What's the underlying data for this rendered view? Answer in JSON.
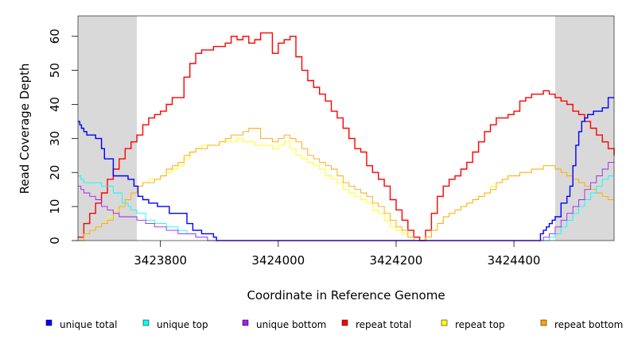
{
  "chart_data": {
    "type": "line",
    "title": "",
    "xlabel": "Coordinate in Reference Genome",
    "ylabel": "Read Coverage Depth",
    "xlim": [
      3423660,
      3424570
    ],
    "ylim": [
      0,
      66
    ],
    "xticks": [
      3423800,
      3424000,
      3424200,
      3424400
    ],
    "xtick_labels": [
      "3423800",
      "3424000",
      "3424200",
      "3424400"
    ],
    "yticks": [
      0,
      10,
      20,
      30,
      40,
      50,
      60
    ],
    "ytick_labels": [
      "0",
      "10",
      "20",
      "30",
      "40",
      "50",
      "60"
    ],
    "shaded_regions": [
      {
        "x0": 3423660,
        "x1": 3423760
      },
      {
        "x0": 3424470,
        "x1": 3424570
      }
    ],
    "series": [
      {
        "name": "repeat total",
        "color": "#ff0000",
        "x": [
          3423660,
          3423670,
          3423680,
          3423690,
          3423700,
          3423710,
          3423720,
          3423730,
          3423740,
          3423750,
          3423760,
          3423770,
          3423780,
          3423790,
          3423800,
          3423810,
          3423820,
          3423830,
          3423840,
          3423850,
          3423860,
          3423870,
          3423880,
          3423890,
          3423900,
          3423910,
          3423920,
          3423930,
          3423940,
          3423950,
          3423960,
          3423970,
          3423980,
          3423990,
          3424000,
          3424010,
          3424020,
          3424030,
          3424040,
          3424050,
          3424060,
          3424070,
          3424080,
          3424090,
          3424100,
          3424110,
          3424120,
          3424130,
          3424140,
          3424150,
          3424160,
          3424170,
          3424180,
          3424190,
          3424200,
          3424210,
          3424220,
          3424230,
          3424240,
          3424250,
          3424260,
          3424270,
          3424280,
          3424290,
          3424300,
          3424310,
          3424320,
          3424330,
          3424340,
          3424350,
          3424360,
          3424370,
          3424380,
          3424390,
          3424400,
          3424410,
          3424420,
          3424430,
          3424440,
          3424450,
          3424460,
          3424470,
          3424480,
          3424490,
          3424500,
          3424510,
          3424520,
          3424530,
          3424540,
          3424550,
          3424560,
          3424570
        ],
        "values": [
          1,
          5,
          8,
          11,
          14,
          18,
          21,
          24,
          27,
          29,
          31,
          34,
          36,
          37,
          38,
          40,
          42,
          42,
          48,
          52,
          55,
          56,
          56,
          57,
          57,
          58,
          60,
          59,
          60,
          58,
          59,
          61,
          61,
          55,
          58,
          59,
          60,
          54,
          50,
          47,
          45,
          43,
          41,
          38,
          36,
          33,
          30,
          27,
          26,
          22,
          20,
          18,
          16,
          12,
          9,
          6,
          3,
          1,
          0,
          3,
          8,
          13,
          16,
          18,
          19,
          21,
          23,
          26,
          29,
          32,
          34,
          36,
          36,
          37,
          38,
          41,
          42,
          43,
          43,
          44,
          43,
          42,
          41,
          40,
          38,
          37,
          35,
          33,
          31,
          29,
          27,
          25
        ]
      },
      {
        "name": "repeat top",
        "color": "#ffff00",
        "x": [
          3423660,
          3423670,
          3423680,
          3423690,
          3423700,
          3423710,
          3423720,
          3423730,
          3423740,
          3423750,
          3423760,
          3423770,
          3423780,
          3423790,
          3423800,
          3423810,
          3423820,
          3423830,
          3423840,
          3423850,
          3423860,
          3423870,
          3423880,
          3423890,
          3423900,
          3423910,
          3423920,
          3423930,
          3423940,
          3423950,
          3423960,
          3423970,
          3423980,
          3423990,
          3424000,
          3424010,
          3424020,
          3424030,
          3424040,
          3424050,
          3424060,
          3424070,
          3424080,
          3424090,
          3424100,
          3424110,
          3424120,
          3424130,
          3424140,
          3424150,
          3424160,
          3424170,
          3424180,
          3424190,
          3424200,
          3424210,
          3424220,
          3424230,
          3424240,
          3424250,
          3424260,
          3424270,
          3424280,
          3424290,
          3424300,
          3424310,
          3424320,
          3424330,
          3424340,
          3424350,
          3424360,
          3424370,
          3424380,
          3424390,
          3424400,
          3424410,
          3424420,
          3424430,
          3424440,
          3424450,
          3424460,
          3424470,
          3424480,
          3424490,
          3424500,
          3424510,
          3424520,
          3424530,
          3424540,
          3424550,
          3424560,
          3424570
        ],
        "values": [
          0,
          2,
          3,
          4,
          5,
          7,
          9,
          10,
          12,
          14,
          16,
          17,
          18,
          18,
          19,
          20,
          21,
          22,
          24,
          26,
          27,
          28,
          28,
          28,
          29,
          29,
          29,
          30,
          29,
          29,
          28,
          28,
          28,
          27,
          28,
          29,
          27,
          25,
          24,
          23,
          22,
          21,
          19,
          18,
          17,
          15,
          14,
          13,
          12,
          11,
          9,
          8,
          6,
          4,
          3,
          2,
          1,
          0,
          0,
          1,
          3,
          5,
          7,
          8,
          9,
          10,
          11,
          12,
          13,
          14,
          16,
          17,
          18,
          19,
          19,
          20,
          20,
          21,
          21,
          22,
          22,
          21,
          20,
          19,
          18,
          17,
          16,
          15,
          14,
          13,
          12,
          12
        ]
      },
      {
        "name": "repeat bottom",
        "color": "#ffa500",
        "x": [
          3423660,
          3423670,
          3423680,
          3423690,
          3423700,
          3423710,
          3423720,
          3423730,
          3423740,
          3423750,
          3423760,
          3423770,
          3423780,
          3423790,
          3423800,
          3423810,
          3423820,
          3423830,
          3423840,
          3423850,
          3423860,
          3423870,
          3423880,
          3423890,
          3423900,
          3423910,
          3423920,
          3423930,
          3423940,
          3423950,
          3423960,
          3423970,
          3423980,
          3423990,
          3424000,
          3424010,
          3424020,
          3424030,
          3424040,
          3424050,
          3424060,
          3424070,
          3424080,
          3424090,
          3424100,
          3424110,
          3424120,
          3424130,
          3424140,
          3424150,
          3424160,
          3424170,
          3424180,
          3424190,
          3424200,
          3424210,
          3424220,
          3424230,
          3424240,
          3424250,
          3424260,
          3424270,
          3424280,
          3424290,
          3424300,
          3424310,
          3424320,
          3424330,
          3424340,
          3424350,
          3424360,
          3424370,
          3424380,
          3424390,
          3424400,
          3424410,
          3424420,
          3424430,
          3424440,
          3424450,
          3424460,
          3424470,
          3424480,
          3424490,
          3424500,
          3424510,
          3424520,
          3424530,
          3424540,
          3424550,
          3424560,
          3424570
        ],
        "values": [
          0,
          2,
          3,
          4,
          5,
          6,
          8,
          10,
          12,
          14,
          16,
          17,
          17,
          18,
          19,
          21,
          22,
          23,
          25,
          26,
          27,
          27,
          28,
          28,
          29,
          30,
          31,
          31,
          32,
          33,
          33,
          30,
          30,
          29,
          30,
          31,
          30,
          29,
          27,
          25,
          24,
          23,
          22,
          21,
          19,
          17,
          16,
          15,
          14,
          13,
          11,
          10,
          8,
          6,
          4,
          3,
          1,
          0,
          0,
          1,
          3,
          5,
          7,
          8,
          9,
          10,
          11,
          12,
          13,
          14,
          15,
          17,
          18,
          19,
          19,
          20,
          20,
          21,
          21,
          22,
          22,
          21,
          20,
          19,
          18,
          17,
          16,
          15,
          14,
          13,
          12,
          12
        ]
      },
      {
        "name": "unique total",
        "color": "#0000ff",
        "x": [
          3423660,
          3423663,
          3423666,
          3423670,
          3423675,
          3423690,
          3423700,
          3423705,
          3423720,
          3423745,
          3423755,
          3423762,
          3423770,
          3423780,
          3423795,
          3423815,
          3423840,
          3423845,
          3423855,
          3423870,
          3423875,
          3423890,
          3423895,
          3424440,
          3424445,
          3424450,
          3424455,
          3424460,
          3424465,
          3424470,
          3424480,
          3424490,
          3424495,
          3424500,
          3424505,
          3424510,
          3424515,
          3424520,
          3424525,
          3424535,
          3424550,
          3424560,
          3424565,
          3424570
        ],
        "values": [
          35,
          34,
          33,
          32,
          31,
          30,
          27,
          24,
          19,
          18,
          16,
          13,
          12,
          11,
          10,
          8,
          8,
          5,
          3,
          2,
          2,
          1,
          0,
          0,
          2,
          3,
          4,
          5,
          6,
          7,
          11,
          13,
          16,
          22,
          28,
          32,
          35,
          36,
          37,
          38,
          39,
          42,
          42,
          42
        ]
      },
      {
        "name": "unique top",
        "color": "#00ffff",
        "x": [
          3423660,
          3423665,
          3423670,
          3423680,
          3423700,
          3423720,
          3423735,
          3423745,
          3423750,
          3423760,
          3423775,
          3423790,
          3423810,
          3423830,
          3423845,
          3423860,
          3423880,
          3423890,
          3423895,
          3424440,
          3424450,
          3424460,
          3424470,
          3424480,
          3424490,
          3424500,
          3424510,
          3424520,
          3424530,
          3424540,
          3424550,
          3424560,
          3424570
        ],
        "values": [
          19,
          18,
          17,
          17,
          16,
          14,
          11,
          10,
          9,
          8,
          6,
          5,
          4,
          3,
          2,
          1,
          0,
          0,
          0,
          0,
          0,
          1,
          2,
          4,
          6,
          8,
          10,
          12,
          14,
          16,
          18,
          19,
          19
        ]
      },
      {
        "name": "unique bottom",
        "color": "#a020f0",
        "x": [
          3423660,
          3423665,
          3423670,
          3423680,
          3423690,
          3423700,
          3423710,
          3423720,
          3423730,
          3423745,
          3423760,
          3423775,
          3423790,
          3423810,
          3423830,
          3423845,
          3423860,
          3423880,
          3423890,
          3423895,
          3424440,
          3424450,
          3424460,
          3424470,
          3424480,
          3424490,
          3424500,
          3424510,
          3424520,
          3424530,
          3424540,
          3424550,
          3424560,
          3424570
        ],
        "values": [
          16,
          15,
          14,
          13,
          12,
          10,
          9,
          8,
          7,
          7,
          6,
          5,
          4,
          3,
          2,
          2,
          1,
          0,
          0,
          0,
          0,
          1,
          2,
          4,
          6,
          8,
          10,
          12,
          15,
          17,
          19,
          21,
          23,
          23
        ]
      }
    ],
    "legend": {
      "placement": "bottom",
      "entries": [
        {
          "label": "unique total",
          "color": "#0000ff"
        },
        {
          "label": "unique top",
          "color": "#00ffff"
        },
        {
          "label": "unique bottom",
          "color": "#a020f0"
        },
        {
          "label": "repeat total",
          "color": "#ff0000"
        },
        {
          "label": "repeat top",
          "color": "#ffff00"
        },
        {
          "label": "repeat bottom",
          "color": "#ffa500"
        }
      ]
    }
  }
}
